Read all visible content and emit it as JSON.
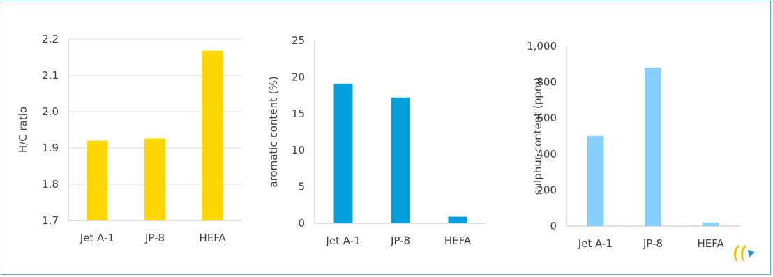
{
  "chart_data": [
    {
      "type": "bar",
      "categories": [
        "Jet A-1",
        "JP-8",
        "HEFA"
      ],
      "values": [
        1.92,
        1.926,
        2.168
      ],
      "title": "",
      "xlabel": "",
      "ylabel": "H/C ratio",
      "ylim": [
        1.7,
        2.2
      ],
      "yticks": [
        "1.7",
        "1.8",
        "1.9",
        "2.0",
        "2.1",
        "2.2"
      ],
      "grid": true,
      "color": "#ffd700"
    },
    {
      "type": "bar",
      "categories": [
        "Jet A-1",
        "JP-8",
        "HEFA"
      ],
      "values": [
        19.1,
        17.2,
        0.9
      ],
      "title": "",
      "xlabel": "",
      "ylabel": "aromatic content (%)",
      "ylim": [
        0,
        25
      ],
      "yticks": [
        "0",
        "5",
        "10",
        "15",
        "20",
        "25"
      ],
      "grid": false,
      "color": "#009fdb"
    },
    {
      "type": "bar",
      "categories": [
        "Jet A-1",
        "JP-8",
        "HEFA"
      ],
      "values": [
        500,
        880,
        20
      ],
      "title": "",
      "xlabel": "",
      "ylabel": "sulphur content (ppm)",
      "ylim": [
        0,
        1000
      ],
      "yticks": [
        "0",
        "200",
        "400",
        "600",
        "800",
        "1,000"
      ],
      "grid": false,
      "color": "#87cefa"
    }
  ],
  "logo": {
    "name": "brand-logo-icon",
    "colors": [
      "#f2c300",
      "#1e90d6"
    ]
  }
}
